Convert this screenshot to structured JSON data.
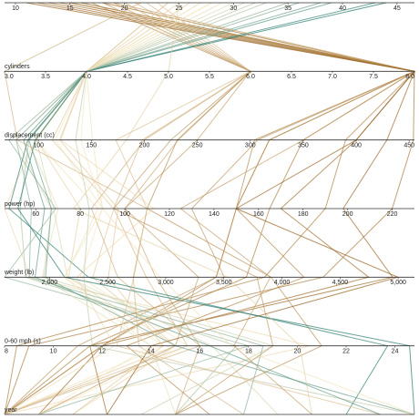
{
  "chart_data": {
    "type": "parallel",
    "color_by": 0,
    "color_scale": [
      "#8c510a",
      "#f6e8c3",
      "#01665e"
    ],
    "dimensions": [
      {
        "xlim": [
          9,
          46.6
        ],
        "ticks": [
          10,
          15,
          20,
          25,
          30,
          35,
          40,
          45
        ]
      },
      {
        "label": "cylinders",
        "xlim": [
          3,
          8
        ],
        "ticks": [
          {
            "value": 3,
            "label": "3.0"
          },
          {
            "value": 3.5,
            "label": "3.5"
          },
          {
            "value": 4,
            "label": "4.0"
          },
          {
            "value": 4.5,
            "label": "4.5"
          },
          {
            "value": 5,
            "label": "5.0"
          },
          {
            "value": 5.5,
            "label": "5.5"
          },
          {
            "value": 6,
            "label": "6.0"
          },
          {
            "value": 6.5,
            "label": "6.5"
          },
          {
            "value": 7,
            "label": "7.0"
          },
          {
            "value": 7.5,
            "label": "7.5"
          },
          {
            "value": 8,
            "label": "8.0"
          }
        ]
      },
      {
        "label": "displacement (cc)",
        "xlim": [
          68,
          455
        ],
        "ticks": [
          100,
          150,
          200,
          250,
          300,
          350,
          400,
          450
        ]
      },
      {
        "label": "power (hp)",
        "xlim": [
          46,
          230
        ],
        "ticks": [
          60,
          80,
          100,
          120,
          140,
          160,
          180,
          200,
          220
        ]
      },
      {
        "label": "weight (lb)",
        "xlim": [
          1613,
          5140
        ],
        "ticks": [
          {
            "value": 2000,
            "label": "2,000"
          },
          {
            "value": 2500,
            "label": "2,500"
          },
          {
            "value": 3000,
            "label": "3,000"
          },
          {
            "value": 3500,
            "label": "3,500"
          },
          {
            "value": 4000,
            "label": "4,000"
          },
          {
            "value": 4500,
            "label": "4,500"
          },
          {
            "value": 5000,
            "label": "5,000"
          }
        ]
      },
      {
        "label": "0-60 mph (s)",
        "xlim": [
          8,
          24.8
        ],
        "ticks": [
          8,
          10,
          12,
          14,
          16,
          18,
          20,
          22,
          24
        ]
      },
      {
        "label": "year",
        "xlim": [
          70,
          82
        ]
      }
    ],
    "rows": [
      {
        "values": [
          18,
          8,
          307,
          130,
          3504,
          12,
          70
        ]
      },
      {
        "values": [
          15,
          8,
          350,
          165,
          3693,
          11.5,
          70
        ]
      },
      {
        "values": [
          18,
          8,
          318,
          150,
          3436,
          11,
          70
        ]
      },
      {
        "values": [
          16,
          8,
          304,
          150,
          3433,
          12,
          70
        ]
      },
      {
        "values": [
          14,
          8,
          454,
          220,
          4354,
          9,
          70
        ]
      },
      {
        "values": [
          24,
          4,
          113,
          95,
          2372,
          15,
          70
        ]
      },
      {
        "values": [
          22,
          6,
          198,
          95,
          2833,
          15.5,
          70
        ]
      },
      {
        "values": [
          27,
          4,
          97,
          88,
          2130,
          14.5,
          70
        ]
      },
      {
        "values": [
          26,
          4,
          97,
          46,
          1835,
          20.5,
          70
        ]
      },
      {
        "values": [
          28,
          4,
          140,
          90,
          2264,
          15.5,
          71
        ]
      },
      {
        "values": [
          13,
          8,
          400,
          170,
          4746,
          12,
          71
        ]
      },
      {
        "values": [
          19,
          6,
          250,
          100,
          3282,
          15,
          71
        ]
      },
      {
        "values": [
          25,
          4,
          98,
          80,
          2164,
          15,
          72
        ]
      },
      {
        "values": [
          12,
          8,
          429,
          198,
          4952,
          11.5,
          73
        ]
      },
      {
        "values": [
          35,
          4,
          72,
          69,
          1613,
          18,
          71
        ]
      },
      {
        "values": [
          20,
          6,
          232,
          100,
          2914,
          16,
          75
        ]
      },
      {
        "values": [
          31,
          4,
          79,
          67,
          1950,
          19,
          74
        ]
      },
      {
        "values": [
          29,
          4,
          90,
          70,
          1937,
          14,
          75
        ]
      },
      {
        "values": [
          17,
          6,
          231,
          110,
          3907,
          21,
          75
        ]
      },
      {
        "values": [
          16,
          8,
          318,
          150,
          4190,
          13,
          76
        ]
      },
      {
        "values": [
          36,
          4,
          79,
          58,
          1825,
          18.6,
          77
        ]
      },
      {
        "values": [
          30,
          4,
          98,
          68,
          2155,
          16.5,
          78
        ]
      },
      {
        "values": [
          21,
          6,
          200,
          85,
          2587,
          16,
          70
        ]
      },
      {
        "values": [
          33,
          4,
          91,
          53,
          1795,
          17.5,
          75
        ]
      },
      {
        "values": [
          26,
          4,
          121,
          113,
          2234,
          12.5,
          70
        ]
      },
      {
        "values": [
          43,
          4,
          90,
          48,
          2335,
          23.7,
          80
        ]
      },
      {
        "values": [
          44,
          4,
          97,
          52,
          2130,
          24.6,
          82
        ]
      },
      {
        "values": [
          38,
          4,
          91,
          67,
          1965,
          15,
          82
        ]
      },
      {
        "values": [
          32,
          4,
          135,
          84,
          2295,
          11.6,
          82
        ]
      },
      {
        "values": [
          27,
          4,
          151,
          90,
          2950,
          17.3,
          82
        ]
      },
      {
        "values": [
          23,
          6,
          173,
          110,
          2725,
          12.6,
          81
        ]
      },
      {
        "values": [
          19,
          8,
          350,
          125,
          3900,
          17.4,
          79
        ]
      },
      {
        "values": [
          18,
          6,
          225,
          95,
          3785,
          19,
          75
        ]
      },
      {
        "values": [
          25,
          5,
          183,
          77,
          3530,
          20.1,
          79
        ]
      },
      {
        "values": [
          21.5,
          3,
          80,
          110,
          2720,
          13.5,
          77
        ]
      },
      {
        "values": [
          15,
          8,
          390,
          190,
          3850,
          8.5,
          70
        ]
      },
      {
        "values": [
          11,
          8,
          400,
          150,
          4997,
          14,
          73
        ]
      },
      {
        "values": [
          24,
          4,
          120,
          97,
          2506,
          14.5,
          72
        ]
      },
      {
        "values": [
          28,
          4,
          116,
          90,
          2123,
          14,
          71
        ]
      },
      {
        "values": [
          39,
          4,
          86,
          64,
          1875,
          16.4,
          81
        ]
      }
    ]
  }
}
